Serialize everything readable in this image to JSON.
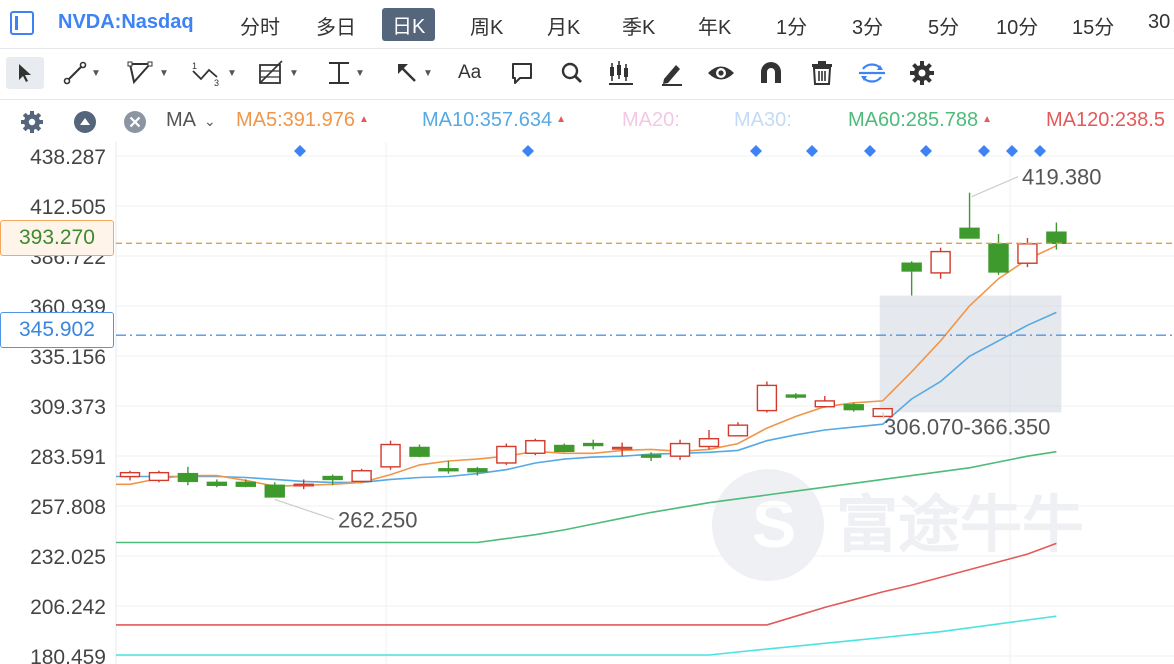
{
  "symbol": "NVDA:Nasdaq",
  "tabs": [
    {
      "label": "分时"
    },
    {
      "label": "多日"
    },
    {
      "label": "日K",
      "active": true
    },
    {
      "label": "周K"
    },
    {
      "label": "月K"
    },
    {
      "label": "季K"
    },
    {
      "label": "年K"
    },
    {
      "label": "1分"
    },
    {
      "label": "3分"
    },
    {
      "label": "5分"
    },
    {
      "label": "10分"
    },
    {
      "label": "15分"
    },
    {
      "label": "30"
    }
  ],
  "toolbar": {
    "text_tool_label": "Aa",
    "icons": [
      "cursor-icon",
      "line-tool-icon",
      "polygon-tool-icon",
      "wave-tool-icon",
      "fibonacci-tool-icon",
      "horizontal-line-icon",
      "arrow-tool-icon",
      "text-tool-icon",
      "comment-icon",
      "search-icon",
      "indicator-icon",
      "pen-icon",
      "eye-icon",
      "magnet-icon",
      "trash-icon",
      "sync-icon",
      "gear-icon"
    ]
  },
  "ma_bar": {
    "indicator": "MA",
    "items": [
      {
        "label": "MA5:391.976",
        "color": "#f0964a",
        "arrow": "up"
      },
      {
        "label": "MA10:357.634",
        "color": "#56a9e3",
        "arrow": "up"
      },
      {
        "label": "MA20:",
        "color": "#f3c8e6"
      },
      {
        "label": "MA30:",
        "color": "#c5daf6"
      },
      {
        "label": "MA60:285.788",
        "color": "#4dbb7a",
        "arrow": "up"
      },
      {
        "label": "MA120:238.5",
        "color": "#e25a5a"
      }
    ]
  },
  "price_tags": {
    "current": "393.270",
    "reference": "345.902",
    "behind_current": "386.722",
    "behind_reference": "335.156"
  },
  "chart_data": {
    "type": "candlestick",
    "y_ticks": [
      "438.287",
      "412.505",
      "386.722",
      "360.939",
      "335.156",
      "309.373",
      "283.591",
      "257.808",
      "232.025",
      "206.242",
      "180.459"
    ],
    "ylim": [
      180.459,
      438.287
    ],
    "current_price": 393.27,
    "reference_price": 345.902,
    "colors": {
      "up": "#d23a2c",
      "down": "#3e9a2c",
      "ma5": "#f0964a",
      "ma10": "#56a9e3",
      "ma60": "#4dbb7a",
      "ma120": "#e25a5a",
      "ma250": "#4de3e3",
      "current_line": "#e0a040",
      "reference_line": "#4f95e8",
      "marker": "#3d83f5"
    },
    "candles": [
      {
        "o": 273.0,
        "h": 276.0,
        "l": 271.0,
        "c": 275.0
      },
      {
        "o": 271.0,
        "h": 276.0,
        "l": 270.0,
        "c": 275.0
      },
      {
        "o": 274.5,
        "h": 278.0,
        "l": 268.5,
        "c": 270.5
      },
      {
        "o": 270.0,
        "h": 271.5,
        "l": 267.5,
        "c": 268.5
      },
      {
        "o": 270.0,
        "h": 271.5,
        "l": 267.5,
        "c": 268.0
      },
      {
        "o": 268.5,
        "h": 270.0,
        "l": 262.25,
        "c": 262.5
      },
      {
        "o": 269.0,
        "h": 271.5,
        "l": 266.5,
        "c": 269.0
      },
      {
        "o": 273.0,
        "h": 274.0,
        "l": 268.5,
        "c": 271.5
      },
      {
        "o": 270.5,
        "h": 277.0,
        "l": 270.0,
        "c": 276.0
      },
      {
        "o": 278.0,
        "h": 291.5,
        "l": 276.5,
        "c": 289.5
      },
      {
        "o": 288.0,
        "h": 289.5,
        "l": 283.0,
        "c": 283.5
      },
      {
        "o": 277.0,
        "h": 281.0,
        "l": 274.5,
        "c": 276.0
      },
      {
        "o": 277.0,
        "h": 278.0,
        "l": 273.5,
        "c": 275.5
      },
      {
        "o": 280.0,
        "h": 290.0,
        "l": 279.0,
        "c": 288.5
      },
      {
        "o": 285.0,
        "h": 292.5,
        "l": 284.0,
        "c": 291.5
      },
      {
        "o": 289.0,
        "h": 290.0,
        "l": 285.5,
        "c": 286.0
      },
      {
        "o": 290.0,
        "h": 292.0,
        "l": 287.0,
        "c": 289.0
      },
      {
        "o": 287.5,
        "h": 290.5,
        "l": 283.5,
        "c": 288.0
      },
      {
        "o": 284.0,
        "h": 285.5,
        "l": 281.0,
        "c": 283.0
      },
      {
        "o": 283.5,
        "h": 292.0,
        "l": 281.5,
        "c": 290.0
      },
      {
        "o": 288.5,
        "h": 297.0,
        "l": 287.0,
        "c": 292.5
      },
      {
        "o": 294.0,
        "h": 301.0,
        "l": 294.0,
        "c": 299.5
      },
      {
        "o": 307.0,
        "h": 322.0,
        "l": 306.0,
        "c": 320.0
      },
      {
        "o": 315.0,
        "h": 316.0,
        "l": 313.0,
        "c": 314.0
      },
      {
        "o": 309.0,
        "h": 314.5,
        "l": 308.5,
        "c": 312.0
      },
      {
        "o": 310.0,
        "h": 311.0,
        "l": 306.5,
        "c": 307.5
      },
      {
        "o": 304.0,
        "h": 308.0,
        "l": 306.07,
        "c": 308.0
      },
      {
        "o": 383.0,
        "h": 384.0,
        "l": 366.35,
        "c": 379.0
      },
      {
        "o": 378.0,
        "h": 391.0,
        "l": 375.0,
        "c": 389.0
      },
      {
        "o": 401.0,
        "h": 419.38,
        "l": 396.0,
        "c": 396.0
      },
      {
        "o": 393.0,
        "h": 398.0,
        "l": 377.0,
        "c": 378.5
      },
      {
        "o": 383.0,
        "h": 396.0,
        "l": 381.0,
        "c": 393.0
      },
      {
        "o": 399.0,
        "h": 404.0,
        "l": 390.0,
        "c": 393.27
      }
    ],
    "ma5": [
      269.0,
      272.0,
      273.5,
      273.5,
      271.0,
      268.0,
      268.5,
      269.0,
      270.0,
      274.0,
      279.0,
      281.0,
      282.0,
      283.5,
      286.0,
      285.0,
      285.0,
      286.5,
      287.0,
      286.0,
      287.0,
      290.0,
      298.0,
      304.0,
      309.0,
      311.0,
      312.0,
      327.0,
      343.0,
      361.0,
      375.0,
      385.0,
      391.976
    ],
    "ma10": [
      273.0,
      273.0,
      273.0,
      273.0,
      272.5,
      271.5,
      270.5,
      270.0,
      270.0,
      271.5,
      272.5,
      273.0,
      274.5,
      276.5,
      280.0,
      282.0,
      283.0,
      283.5,
      284.5,
      285.0,
      285.5,
      286.5,
      291.5,
      294.5,
      297.0,
      298.5,
      300.0,
      313.0,
      322.0,
      335.0,
      343.0,
      351.0,
      357.634
    ],
    "ma60": [
      239.0,
      241.0,
      243.0,
      245.5,
      248.5,
      251.5,
      254.5,
      257.0,
      259.5,
      261.5,
      263.5,
      265.5,
      267.5,
      269.5,
      271.5,
      273.5,
      275.5,
      277.5,
      280.5,
      283.5,
      285.788
    ],
    "ma120": [
      196.5,
      201.0,
      205.5,
      209.5,
      213.5,
      217.0,
      221.0,
      225.0,
      229.0,
      233.0,
      238.5
    ],
    "ma250": [
      181.0,
      182.5,
      184.0,
      185.5,
      187.0,
      188.5,
      190.0,
      191.5,
      193.0,
      195.0,
      197.0,
      199.0,
      201.0
    ],
    "annotations": {
      "high_label": "419.380",
      "low_label": "262.250",
      "range_label": "306.070-366.350"
    },
    "markers_count": 8
  }
}
